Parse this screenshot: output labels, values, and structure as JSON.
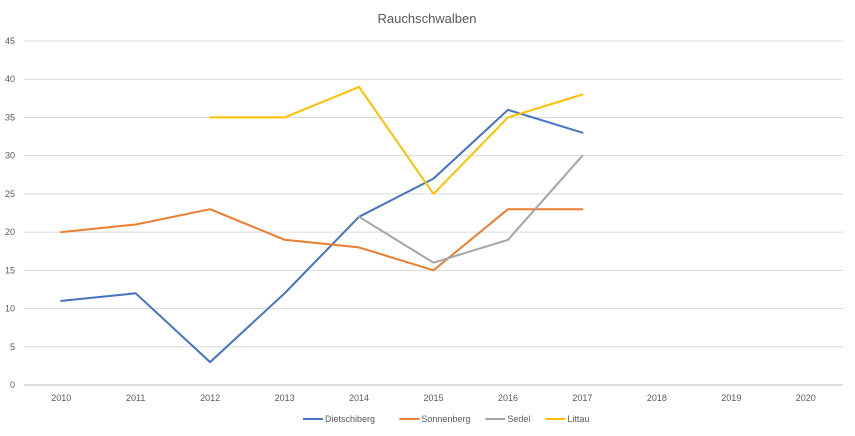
{
  "chart_data": {
    "type": "line",
    "title": "Rauchschwalben",
    "xlabel": "",
    "ylabel": "",
    "categories": [
      "2010",
      "2011",
      "2012",
      "2013",
      "2014",
      "2015",
      "2016",
      "2017",
      "2018",
      "2019",
      "2020"
    ],
    "y_ticks": [
      "0",
      "5",
      "10",
      "15",
      "20",
      "25",
      "30",
      "35",
      "40",
      "45"
    ],
    "ylim": [
      0,
      45
    ],
    "grid": true,
    "legend_position": "bottom",
    "series": [
      {
        "name": "Dietschiberg",
        "color": "#4472C4",
        "values": [
          11,
          12,
          3,
          12,
          22,
          27,
          36,
          33,
          null,
          null,
          null
        ]
      },
      {
        "name": "Sonnenberg",
        "color": "#ED7D31",
        "values": [
          20,
          21,
          23,
          19,
          18,
          15,
          23,
          23,
          null,
          null,
          null
        ]
      },
      {
        "name": "Sedel",
        "color": "#A5A5A5",
        "values": [
          null,
          null,
          null,
          null,
          22,
          16,
          19,
          30,
          null,
          null,
          null
        ]
      },
      {
        "name": "Littau",
        "color": "#FFC000",
        "values": [
          null,
          null,
          35,
          35,
          39,
          25,
          35,
          38,
          null,
          null,
          null
        ]
      }
    ]
  }
}
